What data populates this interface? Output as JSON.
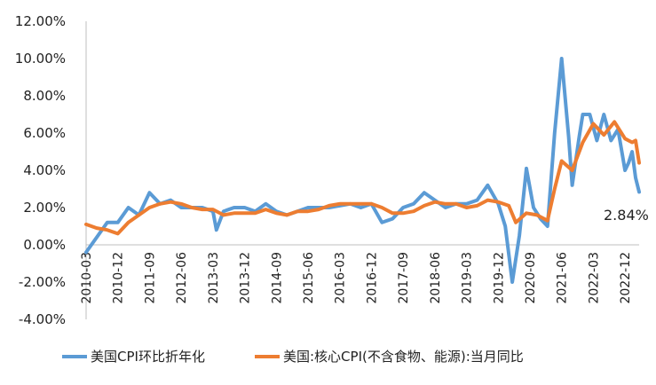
{
  "chart_data": {
    "type": "line",
    "title": "",
    "xlabel": "",
    "ylabel": "",
    "ylim": [
      -4,
      12
    ],
    "y_ticks": [
      "-4.00%",
      "-2.00%",
      "0.00%",
      "2.00%",
      "4.00%",
      "6.00%",
      "8.00%",
      "10.00%",
      "12.00%"
    ],
    "x_tick_labels": [
      "2010-03",
      "2010-12",
      "2011-09",
      "2012-06",
      "2013-03",
      "2013-12",
      "2014-09",
      "2015-06",
      "2016-03",
      "2016-12",
      "2017-09",
      "2018-06",
      "2019-03",
      "2019-12",
      "2020-09",
      "2021-06",
      "2022-03",
      "2022-12"
    ],
    "x_start": "2010-03",
    "x_end": "2023-04",
    "grid": "none",
    "legend_position": "bottom",
    "annotation": "2.84%",
    "series": [
      {
        "name": "美国CPI环比折年化",
        "color": "#5B9BD5",
        "points": [
          [
            "2010-03",
            -0.4
          ],
          [
            "2010-06",
            0.4
          ],
          [
            "2010-09",
            1.2
          ],
          [
            "2010-12",
            1.2
          ],
          [
            "2011-03",
            2.0
          ],
          [
            "2011-06",
            1.6
          ],
          [
            "2011-09",
            2.8
          ],
          [
            "2011-12",
            2.2
          ],
          [
            "2012-03",
            2.4
          ],
          [
            "2012-06",
            2.0
          ],
          [
            "2012-09",
            2.0
          ],
          [
            "2012-12",
            2.0
          ],
          [
            "2013-03",
            1.8
          ],
          [
            "2013-04",
            0.8
          ],
          [
            "2013-06",
            1.8
          ],
          [
            "2013-09",
            2.0
          ],
          [
            "2013-12",
            2.0
          ],
          [
            "2014-03",
            1.8
          ],
          [
            "2014-06",
            2.2
          ],
          [
            "2014-09",
            1.8
          ],
          [
            "2014-12",
            1.6
          ],
          [
            "2015-03",
            1.8
          ],
          [
            "2015-06",
            2.0
          ],
          [
            "2015-09",
            2.0
          ],
          [
            "2015-12",
            2.0
          ],
          [
            "2016-03",
            2.1
          ],
          [
            "2016-06",
            2.2
          ],
          [
            "2016-09",
            2.0
          ],
          [
            "2016-12",
            2.2
          ],
          [
            "2017-03",
            1.2
          ],
          [
            "2017-06",
            1.4
          ],
          [
            "2017-09",
            2.0
          ],
          [
            "2017-12",
            2.2
          ],
          [
            "2018-03",
            2.8
          ],
          [
            "2018-06",
            2.4
          ],
          [
            "2018-09",
            2.0
          ],
          [
            "2018-12",
            2.2
          ],
          [
            "2019-03",
            2.2
          ],
          [
            "2019-06",
            2.4
          ],
          [
            "2019-09",
            3.2
          ],
          [
            "2019-12",
            2.2
          ],
          [
            "2020-02",
            1.0
          ],
          [
            "2020-04",
            -2.0
          ],
          [
            "2020-06",
            0.5
          ],
          [
            "2020-08",
            4.1
          ],
          [
            "2020-10",
            2.0
          ],
          [
            "2020-12",
            1.4
          ],
          [
            "2021-02",
            1.0
          ],
          [
            "2021-04",
            6.0
          ],
          [
            "2021-06",
            10.0
          ],
          [
            "2021-08",
            5.8
          ],
          [
            "2021-09",
            3.2
          ],
          [
            "2021-11",
            5.8
          ],
          [
            "2021-12",
            7.0
          ],
          [
            "2022-02",
            7.0
          ],
          [
            "2022-04",
            5.6
          ],
          [
            "2022-06",
            7.0
          ],
          [
            "2022-08",
            5.6
          ],
          [
            "2022-10",
            6.2
          ],
          [
            "2022-12",
            4.0
          ],
          [
            "2023-01",
            4.4
          ],
          [
            "2023-02",
            5.0
          ],
          [
            "2023-03",
            3.6
          ],
          [
            "2023-04",
            2.84
          ]
        ]
      },
      {
        "name": "美国:核心CPI(不含食物、能源):当月同比",
        "color": "#ED7D31",
        "points": [
          [
            "2010-03",
            1.1
          ],
          [
            "2010-06",
            0.9
          ],
          [
            "2010-09",
            0.8
          ],
          [
            "2010-12",
            0.6
          ],
          [
            "2011-03",
            1.2
          ],
          [
            "2011-06",
            1.6
          ],
          [
            "2011-09",
            2.0
          ],
          [
            "2011-12",
            2.2
          ],
          [
            "2012-03",
            2.3
          ],
          [
            "2012-06",
            2.2
          ],
          [
            "2012-09",
            2.0
          ],
          [
            "2012-12",
            1.9
          ],
          [
            "2013-03",
            1.9
          ],
          [
            "2013-06",
            1.6
          ],
          [
            "2013-09",
            1.7
          ],
          [
            "2013-12",
            1.7
          ],
          [
            "2014-03",
            1.7
          ],
          [
            "2014-06",
            1.9
          ],
          [
            "2014-09",
            1.7
          ],
          [
            "2014-12",
            1.6
          ],
          [
            "2015-03",
            1.8
          ],
          [
            "2015-06",
            1.8
          ],
          [
            "2015-09",
            1.9
          ],
          [
            "2015-12",
            2.1
          ],
          [
            "2016-03",
            2.2
          ],
          [
            "2016-06",
            2.2
          ],
          [
            "2016-09",
            2.2
          ],
          [
            "2016-12",
            2.2
          ],
          [
            "2017-03",
            2.0
          ],
          [
            "2017-06",
            1.7
          ],
          [
            "2017-09",
            1.7
          ],
          [
            "2017-12",
            1.8
          ],
          [
            "2018-03",
            2.1
          ],
          [
            "2018-06",
            2.3
          ],
          [
            "2018-09",
            2.2
          ],
          [
            "2018-12",
            2.2
          ],
          [
            "2019-03",
            2.0
          ],
          [
            "2019-06",
            2.1
          ],
          [
            "2019-09",
            2.4
          ],
          [
            "2019-12",
            2.3
          ],
          [
            "2020-03",
            2.1
          ],
          [
            "2020-05",
            1.2
          ],
          [
            "2020-08",
            1.7
          ],
          [
            "2020-11",
            1.6
          ],
          [
            "2021-02",
            1.3
          ],
          [
            "2021-04",
            3.0
          ],
          [
            "2021-06",
            4.5
          ],
          [
            "2021-09",
            4.0
          ],
          [
            "2021-12",
            5.5
          ],
          [
            "2022-03",
            6.5
          ],
          [
            "2022-06",
            5.9
          ],
          [
            "2022-09",
            6.6
          ],
          [
            "2022-12",
            5.7
          ],
          [
            "2023-02",
            5.5
          ],
          [
            "2023-03",
            5.6
          ],
          [
            "2023-04",
            4.4
          ]
        ]
      }
    ]
  }
}
